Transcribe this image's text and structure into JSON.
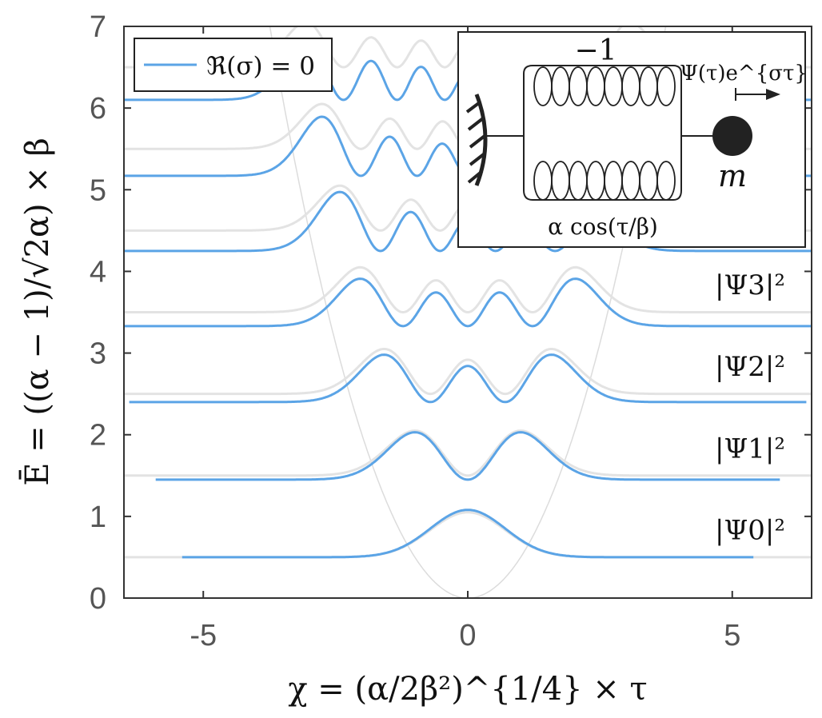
{
  "chart_data": {
    "type": "line",
    "xlabel": "χ = (α/2β²)^{1/4} × τ",
    "ylabel": "Ē = ((α − 1)/√2α) × β",
    "xlim": [
      -6.5,
      6.5
    ],
    "ylim": [
      0,
      7
    ],
    "xticks": [
      -5,
      0,
      5
    ],
    "yticks": [
      0,
      1,
      2,
      3,
      4,
      5,
      6,
      7
    ],
    "xtick_labels": [
      "-5",
      "0",
      "5"
    ],
    "ytick_labels": [
      "0",
      "1",
      "2",
      "3",
      "4",
      "5",
      "6",
      "7"
    ],
    "grid": false,
    "legend": {
      "position": "top-left",
      "entries": [
        {
          "label": "ℜ(σ) = 0",
          "color": "#5ba4e6"
        }
      ]
    },
    "colors": {
      "blue": "#5ba4e6",
      "gray": "#e3e3e3",
      "potential": "#dcdcdc",
      "axis": "#333333"
    },
    "potential": {
      "type": "harmonic",
      "formula": "0.5·χ²"
    },
    "levels": [
      {
        "n": 0,
        "gray_baseline": 0.5,
        "blue_baseline": 0.5,
        "blue_xrange": [
          -5.4,
          5.4
        ],
        "label": "|Ψ0|²"
      },
      {
        "n": 1,
        "gray_baseline": 1.5,
        "blue_baseline": 1.45,
        "blue_xrange": [
          -5.9,
          5.9
        ],
        "label": "|Ψ1|²"
      },
      {
        "n": 2,
        "gray_baseline": 2.5,
        "blue_baseline": 2.4,
        "blue_xrange": [
          -6.4,
          6.4
        ],
        "label": "|Ψ2|²"
      },
      {
        "n": 3,
        "gray_baseline": 3.5,
        "blue_baseline": 3.33,
        "blue_xrange": [
          -6.5,
          6.5
        ],
        "label": "|Ψ3|²"
      },
      {
        "n": 4,
        "gray_baseline": 4.5,
        "blue_baseline": 4.25,
        "blue_xrange": [
          -6.5,
          6.5
        ],
        "label": ""
      },
      {
        "n": 5,
        "gray_baseline": 5.5,
        "blue_baseline": 5.17,
        "blue_xrange": [
          -6.5,
          6.5
        ],
        "label": ""
      },
      {
        "n": 6,
        "gray_baseline": 6.5,
        "blue_baseline": 6.1,
        "blue_xrange": [
          -6.5,
          6.5
        ],
        "label": ""
      }
    ],
    "inset": {
      "spring_top_label": "−1",
      "spring_bottom_label": "α cos(τ/β)",
      "arrow_label": "Ψ(τ)e^{στ}",
      "mass_label": "m"
    }
  }
}
